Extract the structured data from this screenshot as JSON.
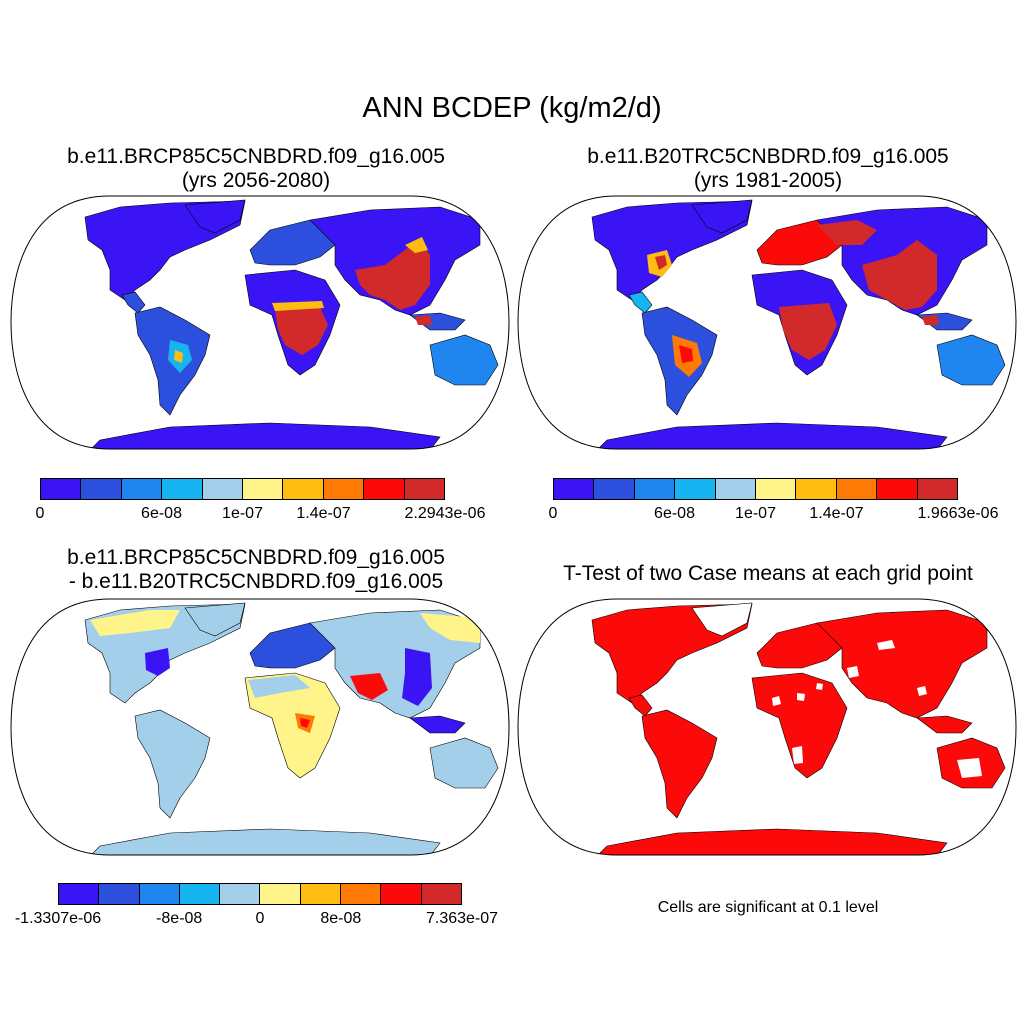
{
  "figure": {
    "title": "ANN BCDEP (kg/m2/d)"
  },
  "panels": [
    {
      "id": "future",
      "title_line1": "b.e11.BRCP85C5CNBDRD.f09_g16.005",
      "title_line2": "(yrs 2056-2080)",
      "colorbar": {
        "colors": [
          "#3a14f5",
          "#2c50dd",
          "#1f86f0",
          "#16b5f2",
          "#a3cfeb",
          "#fff48a",
          "#ffbd12",
          "#ff7a05",
          "#fc0a0a",
          "#d22a2a"
        ],
        "ticks": [
          "0",
          "6e-08",
          "1e-07",
          "1.4e-07",
          "2.2943e-06"
        ]
      },
      "region_colors": {
        "ocean_bg": "#ffffff",
        "land_low": "#3a14f5",
        "land_mid": "#2c50dd",
        "hot": "#d22a2a",
        "warm": "#ffbd12",
        "cool": "#16b5f2",
        "pale": "#a3cfeb"
      }
    },
    {
      "id": "present",
      "title_line1": "b.e11.B20TRC5CNBDRD.f09_g16.005",
      "title_line2": "(yrs 1981-2005)",
      "colorbar": {
        "colors": [
          "#3a14f5",
          "#2c50dd",
          "#1f86f0",
          "#16b5f2",
          "#a3cfeb",
          "#fff48a",
          "#ffbd12",
          "#ff7a05",
          "#fc0a0a",
          "#d22a2a"
        ],
        "ticks": [
          "0",
          "6e-08",
          "1e-07",
          "1.4e-07",
          "1.9663e-06"
        ]
      }
    },
    {
      "id": "difference",
      "title_line1": "b.e11.BRCP85C5CNBDRD.f09_g16.005",
      "title_line2": "- b.e11.B20TRC5CNBDRD.f09_g16.005",
      "colorbar": {
        "colors": [
          "#3a14f5",
          "#2c50dd",
          "#1f86f0",
          "#16b5f2",
          "#a3cfeb",
          "#fff48a",
          "#ffbd12",
          "#ff7a05",
          "#fc0a0a",
          "#d22a2a"
        ],
        "ticks": [
          "-1.3307e-06",
          "-8e-08",
          "0",
          "8e-08",
          "7.363e-07"
        ]
      }
    },
    {
      "id": "ttest",
      "title_line1": "T-Test of two Case means at each grid point",
      "note": "Cells are significant at 0.1 level"
    }
  ]
}
